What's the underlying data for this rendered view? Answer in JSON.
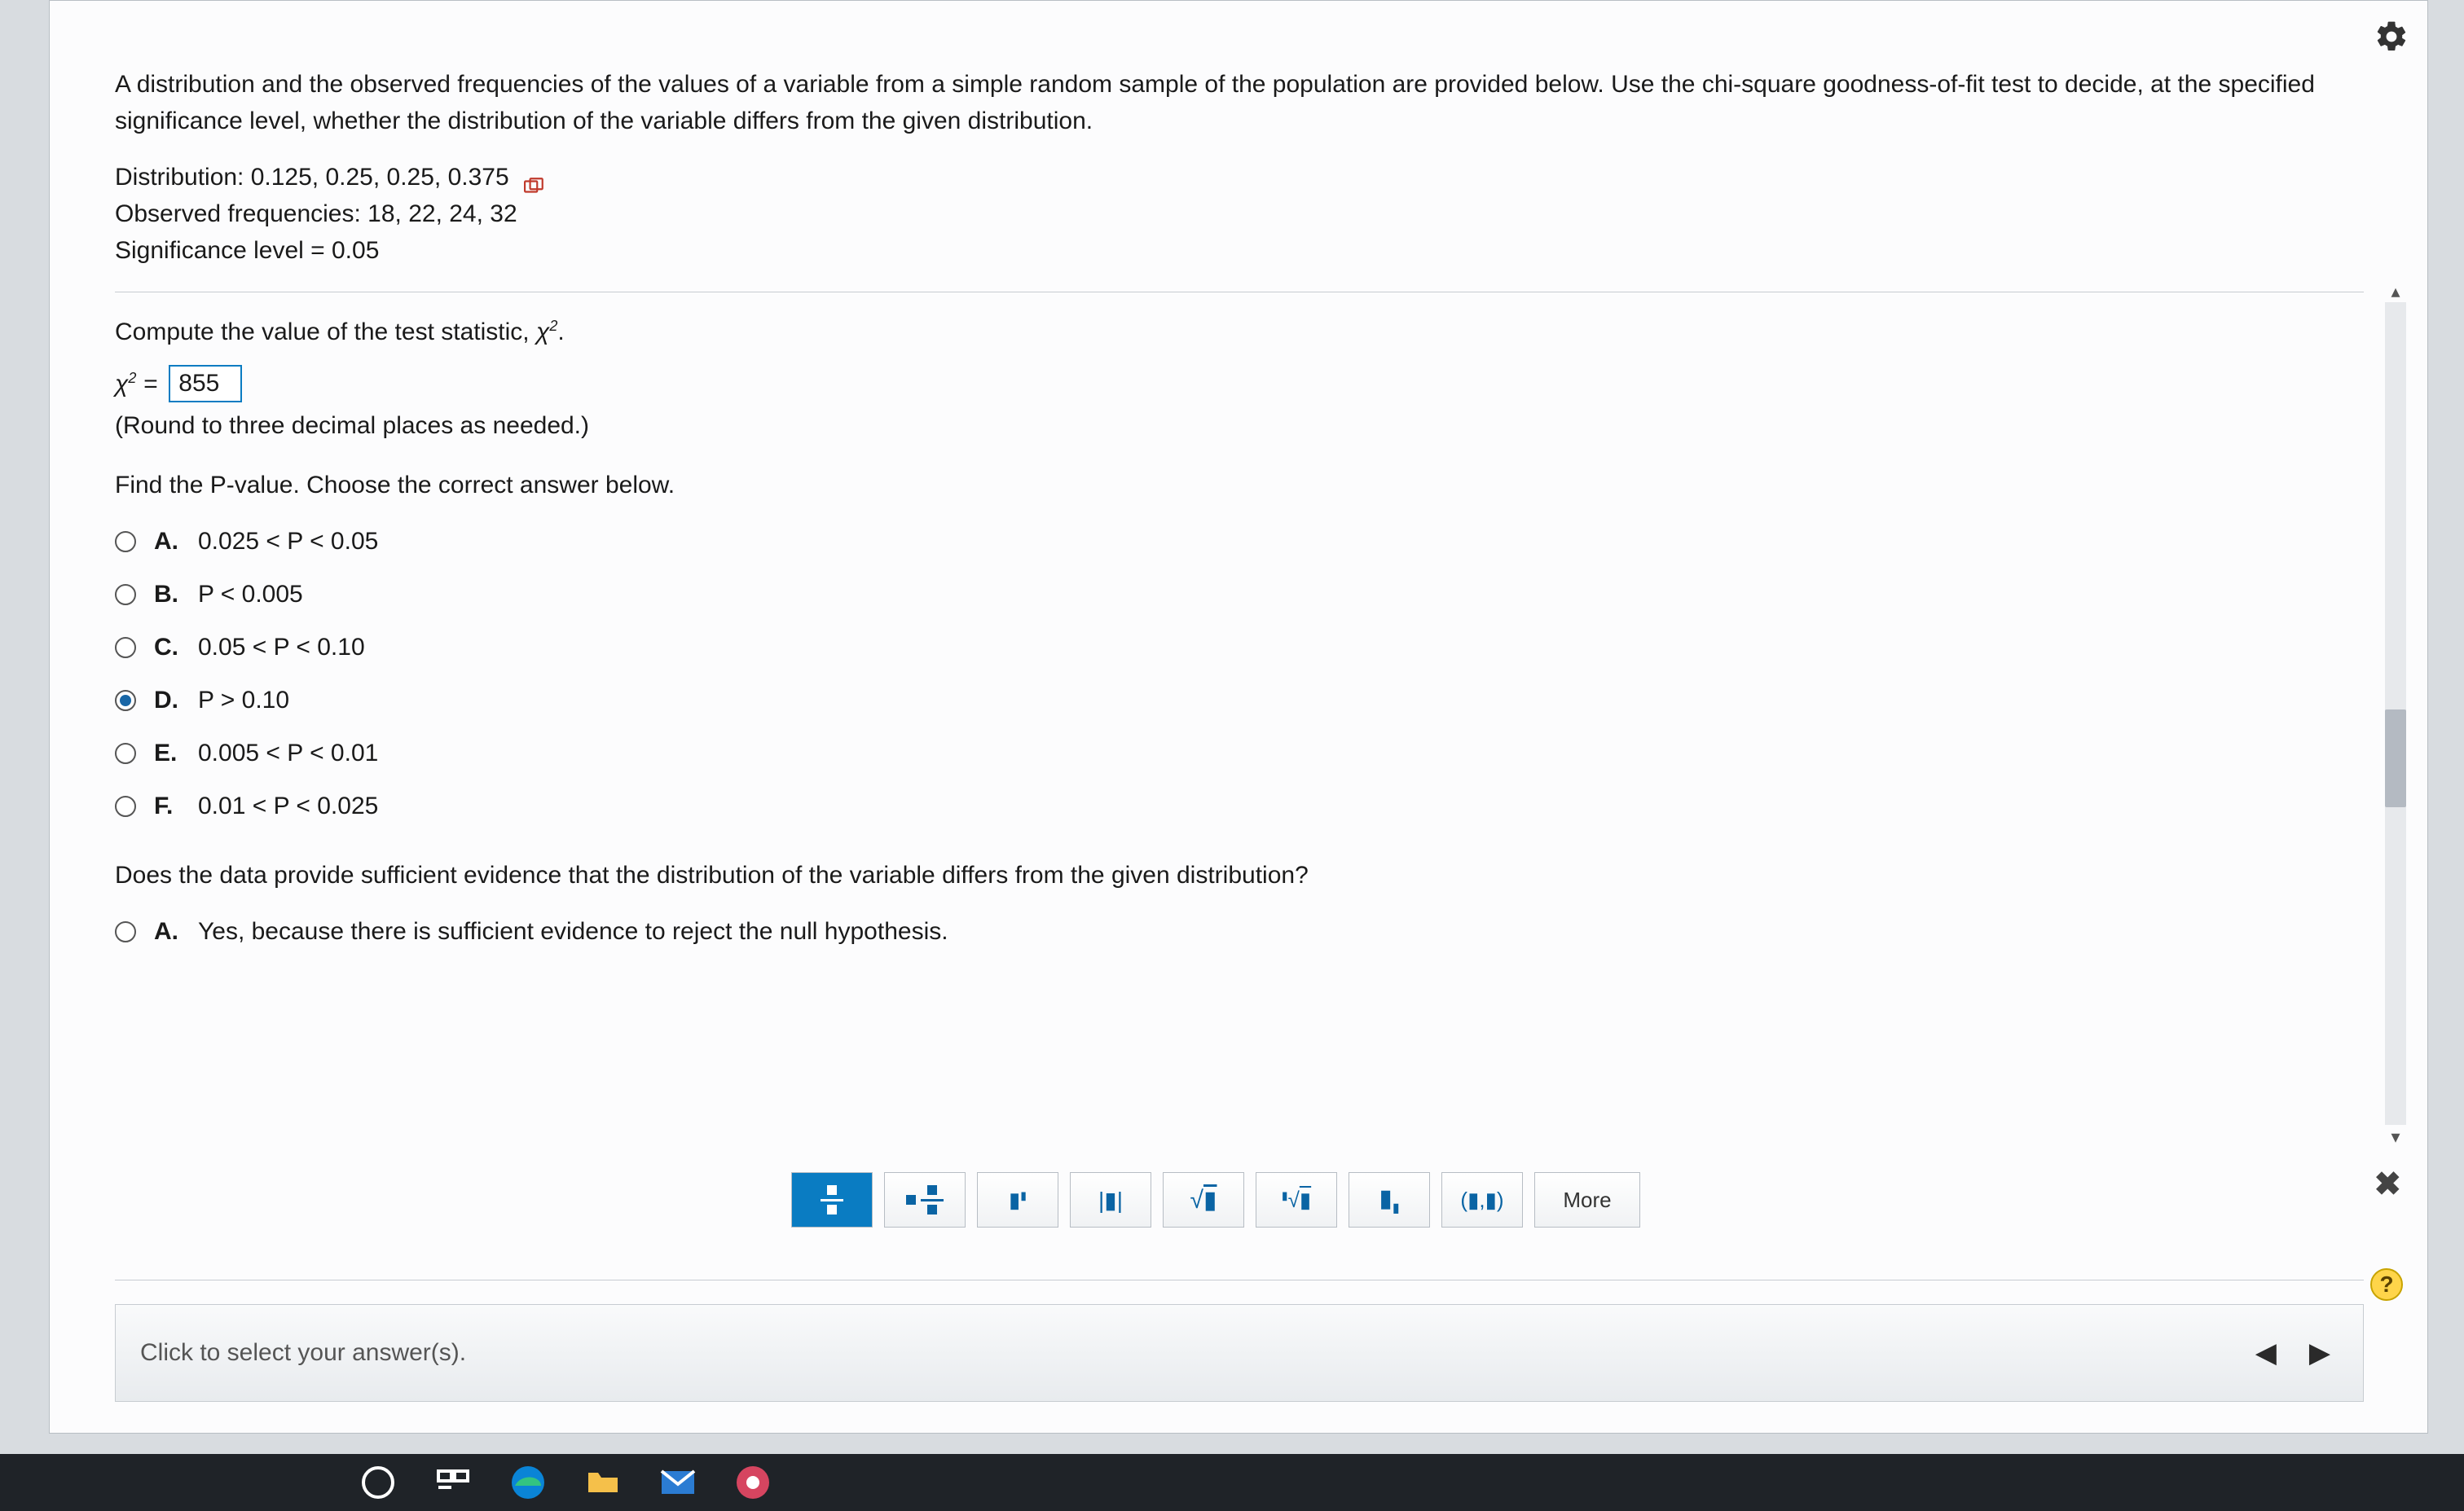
{
  "prompt": "A distribution and the observed frequencies of the values of a variable from a simple random sample of the population are provided below. Use the chi-square goodness-of-fit test to decide, at the specified significance level, whether the distribution of the variable differs from the given distribution.",
  "given": {
    "distribution_label": "Distribution: 0.125, 0.25, 0.25, 0.375",
    "observed_label": "Observed frequencies: 18, 22, 24, 32",
    "sig_label": "Significance level = 0.05"
  },
  "q1": {
    "text": "Compute the value of the test statistic, χ².",
    "eq_left": "χ² =",
    "input_value": "855",
    "hint": "(Round to three decimal places as needed.)"
  },
  "q2": {
    "text": "Find the P-value. Choose the correct answer below.",
    "options": [
      {
        "letter": "A.",
        "text": "0.025 < P < 0.05",
        "selected": false
      },
      {
        "letter": "B.",
        "text": "P < 0.005",
        "selected": false
      },
      {
        "letter": "C.",
        "text": "0.05 < P < 0.10",
        "selected": false
      },
      {
        "letter": "D.",
        "text": "P > 0.10",
        "selected": true
      },
      {
        "letter": "E.",
        "text": "0.005 < P < 0.01",
        "selected": false
      },
      {
        "letter": "F.",
        "text": "0.01 < P < 0.025",
        "selected": false
      }
    ]
  },
  "q3": {
    "text": "Does the data provide sufficient evidence that the distribution of the variable differs from the given distribution?",
    "options": [
      {
        "letter": "A.",
        "text": "Yes, because there is sufficient evidence to reject the null hypothesis.",
        "selected": false
      }
    ]
  },
  "toolbar": {
    "buttons": [
      "▮/▮",
      "▮ ▮/▮",
      "▮ˣ",
      "|▮|",
      "√▮",
      "ⁿ√▮",
      "▮.",
      "(▮,▮)",
      "More"
    ]
  },
  "footer_text": "Click to select your answer(s).",
  "icons": {
    "help": "?",
    "close": "✖",
    "up": "▴",
    "down": "▾",
    "prev": "◀",
    "next": "▶"
  }
}
